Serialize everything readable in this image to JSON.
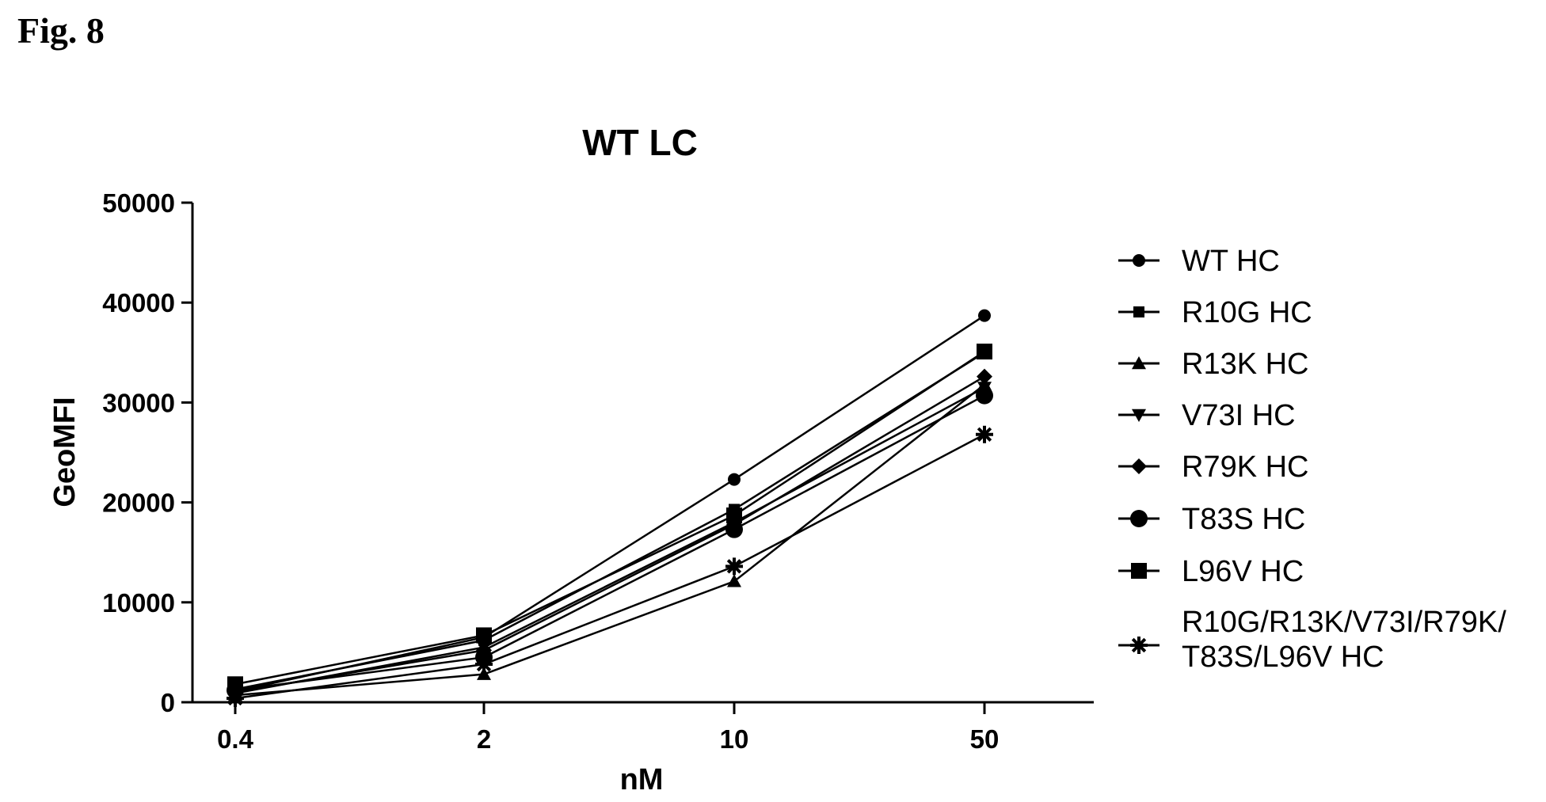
{
  "figure_label": "Fig. 8",
  "chart_data": {
    "type": "line",
    "title": "WT LC",
    "xlabel": "nM",
    "ylabel": "GeoMFI",
    "x_scale": "log",
    "categories": [
      "0.4",
      "2",
      "10",
      "50"
    ],
    "x": [
      0.4,
      2,
      10,
      50
    ],
    "ylim": [
      0,
      50000
    ],
    "yticks": [
      "0",
      "10000",
      "20000",
      "30000",
      "40000",
      "50000"
    ],
    "ytick_values": [
      0,
      10000,
      20000,
      30000,
      40000,
      50000
    ],
    "grid": false,
    "legend_position": "right",
    "series": [
      {
        "name": "WT HC",
        "marker": "circle-small",
        "values": [
          1100,
          6500,
          22300,
          38700
        ]
      },
      {
        "name": "R10G HC",
        "marker": "square-small",
        "values": [
          1300,
          6200,
          19300,
          35000
        ]
      },
      {
        "name": "R13K HC",
        "marker": "triangle-up",
        "values": [
          700,
          2800,
          12100,
          31800
        ]
      },
      {
        "name": "V73I HC",
        "marker": "triangle-down",
        "values": [
          900,
          5500,
          18000,
          31500
        ]
      },
      {
        "name": "R79K HC",
        "marker": "diamond",
        "values": [
          1000,
          5200,
          17800,
          32600
        ]
      },
      {
        "name": "T83S HC",
        "marker": "circle-large",
        "values": [
          1200,
          4500,
          17300,
          30700
        ]
      },
      {
        "name": "L96V HC",
        "marker": "square-large",
        "values": [
          1800,
          6700,
          18700,
          35100
        ]
      },
      {
        "name": "R10G/R13K/V73I/R79K/\nT83S/L96V HC",
        "marker": "asterisk",
        "values": [
          400,
          3800,
          13600,
          26800
        ]
      }
    ]
  }
}
